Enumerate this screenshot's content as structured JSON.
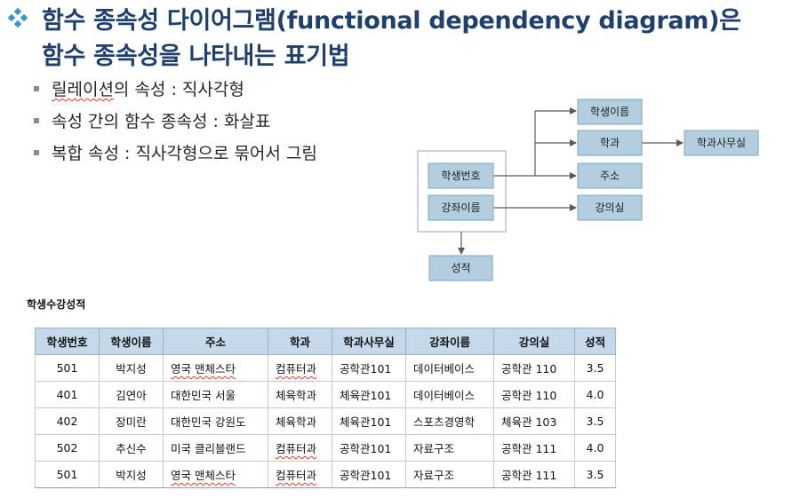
{
  "title": {
    "bullet_icon": "diamond-four-squares-icon",
    "bullet_color": "#3a94c9",
    "line1": "함수 종속성 다이어그램(functional dependency diagram)은",
    "line2": "함수 종속성을 나타내는 표기법"
  },
  "bullets": [
    {
      "prefix": "릴레이션",
      "rest": "의 속성 : 직사각형"
    },
    {
      "text": "속성 간의 함수 종속성 : 화살표"
    },
    {
      "text": "복합 속성 : 직사각형으로 묶어서 그림"
    }
  ],
  "diagram": {
    "nodes": {
      "student_no": "학생번호",
      "course_name": "강좌이름",
      "grade": "성적",
      "student_name": "학생이름",
      "department": "학과",
      "address": "주소",
      "classroom": "강의실",
      "dept_office": "학과사무실"
    },
    "colors": {
      "node_fill": "#b3cede",
      "arrow": "#595959"
    }
  },
  "table": {
    "caption": "학생수강성적",
    "headers": [
      "학생번호",
      "학생이름",
      "주소",
      "학과",
      "학과사무실",
      "강좌이름",
      "강의실",
      "성적"
    ],
    "rows": [
      [
        "501",
        "박지성",
        "영국 맨체스타",
        "컴퓨터과",
        "공학관101",
        "데이터베이스",
        "공학관 110",
        "3.5"
      ],
      [
        "401",
        "김연아",
        "대한민국 서울",
        "체육학과",
        "체육관101",
        "데이터베이스",
        "공학관 110",
        "4.0"
      ],
      [
        "402",
        "장미란",
        "대한민국 강원도",
        "체육학과",
        "체육관101",
        "스포츠경영학",
        "체육관 103",
        "3.5"
      ],
      [
        "502",
        "추신수",
        "미국 클리블랜드",
        "컴퓨터과",
        "공학관101",
        "자료구조",
        "공학관 111",
        "4.0"
      ],
      [
        "501",
        "박지성",
        "영국 맨체스타",
        "컴퓨터과",
        "공학관101",
        "자료구조",
        "공학관 111",
        "3.5"
      ]
    ],
    "header_color": "#c5d9ea"
  }
}
